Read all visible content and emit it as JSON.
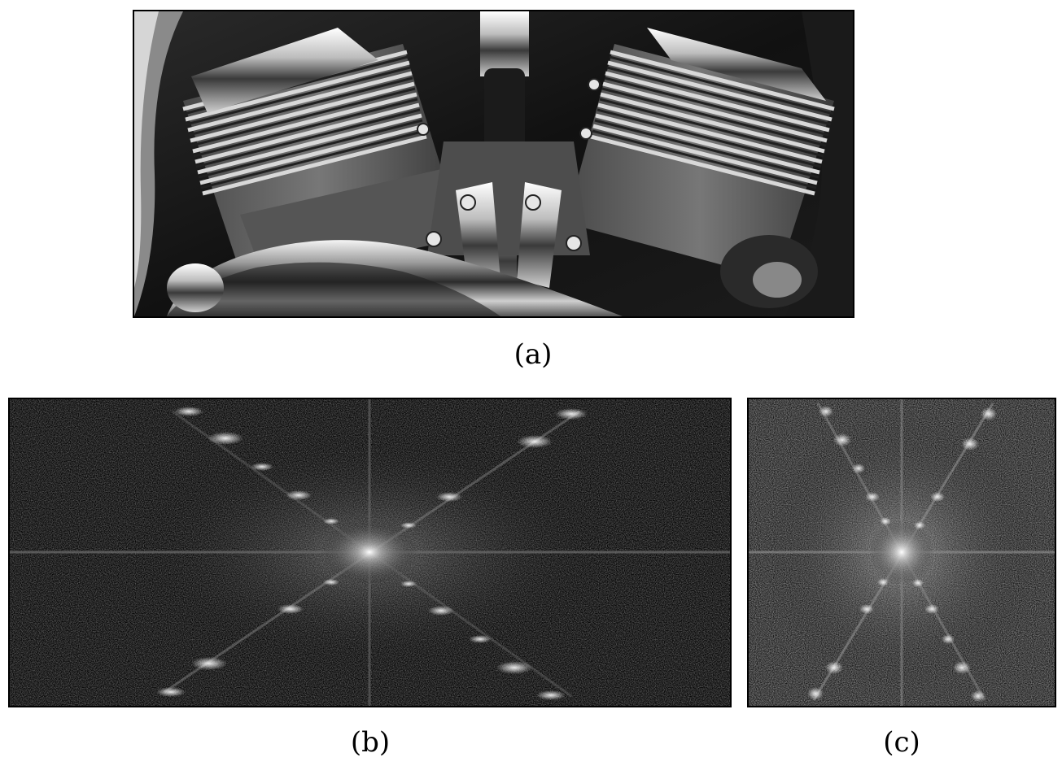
{
  "figure": {
    "panels": [
      {
        "id": "a",
        "caption": "(a)",
        "content": "photo",
        "subject_icon": "motorcycle-engine-image",
        "tones": "grayscale"
      },
      {
        "id": "b",
        "caption": "(b)",
        "content": "fourier-spectrum",
        "subject_icon": "fourier-magnitude-spectrum",
        "tones": "grayscale"
      },
      {
        "id": "c",
        "caption": "(c)",
        "content": "fourier-spectrum",
        "subject_icon": "fourier-magnitude-spectrum",
        "tones": "grayscale"
      }
    ]
  }
}
